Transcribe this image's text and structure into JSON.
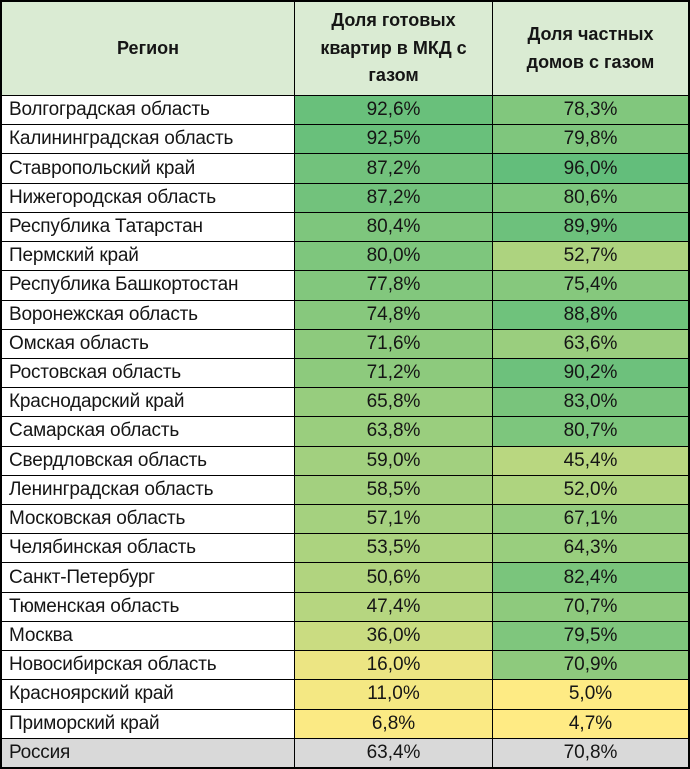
{
  "chart_data": {
    "type": "table",
    "columns": [
      {
        "key": "region",
        "label": "Регион"
      },
      {
        "key": "mkd_pct",
        "label": "Доля готовых квартир в МКД с газом"
      },
      {
        "key": "private_pct",
        "label": "Доля частных домов с газом"
      }
    ],
    "unit": "%",
    "decimal_separator": ",",
    "rows": [
      {
        "region": "Волгоградская область",
        "mkd_pct": 92.6,
        "private_pct": 78.3
      },
      {
        "region": "Калининградская область",
        "mkd_pct": 92.5,
        "private_pct": 79.8
      },
      {
        "region": "Ставропольский край",
        "mkd_pct": 87.2,
        "private_pct": 96.0
      },
      {
        "region": "Нижегородская область",
        "mkd_pct": 87.2,
        "private_pct": 80.6
      },
      {
        "region": "Республика Татарстан",
        "mkd_pct": 80.4,
        "private_pct": 89.9
      },
      {
        "region": "Пермский край",
        "mkd_pct": 80.0,
        "private_pct": 52.7
      },
      {
        "region": "Республика Башкортостан",
        "mkd_pct": 77.8,
        "private_pct": 75.4
      },
      {
        "region": "Воронежская область",
        "mkd_pct": 74.8,
        "private_pct": 88.8
      },
      {
        "region": "Омская область",
        "mkd_pct": 71.6,
        "private_pct": 63.6
      },
      {
        "region": "Ростовская область",
        "mkd_pct": 71.2,
        "private_pct": 90.2
      },
      {
        "region": "Краснодарский край",
        "mkd_pct": 65.8,
        "private_pct": 83.0
      },
      {
        "region": "Самарская область",
        "mkd_pct": 63.8,
        "private_pct": 80.7
      },
      {
        "region": "Свердловская область",
        "mkd_pct": 59.0,
        "private_pct": 45.4
      },
      {
        "region": "Ленинградская область",
        "mkd_pct": 58.5,
        "private_pct": 52.0
      },
      {
        "region": "Московская область",
        "mkd_pct": 57.1,
        "private_pct": 67.1
      },
      {
        "region": "Челябинская область",
        "mkd_pct": 53.5,
        "private_pct": 64.3
      },
      {
        "region": "Санкт-Петербург",
        "mkd_pct": 50.6,
        "private_pct": 82.4
      },
      {
        "region": "Тюменская область",
        "mkd_pct": 47.4,
        "private_pct": 70.7
      },
      {
        "region": "Москва",
        "mkd_pct": 36.0,
        "private_pct": 79.5
      },
      {
        "region": "Новосибирская область",
        "mkd_pct": 16.0,
        "private_pct": 70.9
      },
      {
        "region": "Красноярский край",
        "mkd_pct": 11.0,
        "private_pct": 5.0
      },
      {
        "region": "Приморский край",
        "mkd_pct": 6.8,
        "private_pct": 4.7
      }
    ],
    "summary_row": {
      "region": "Россия",
      "mkd_pct": 63.4,
      "private_pct": 70.8
    },
    "color_scale": {
      "applies_to": [
        "mkd_pct",
        "private_pct"
      ],
      "min_value": 4.7,
      "max_value": 96.0,
      "min_color": "#FFEB84",
      "max_color": "#63BE7B"
    }
  },
  "styles": {
    "header_bg": "#DAEBD3",
    "summary_bg": "#D9D9D9",
    "row_label_bg": "#FFFFFF",
    "border_color": "#000000",
    "text_color": "#151515"
  }
}
